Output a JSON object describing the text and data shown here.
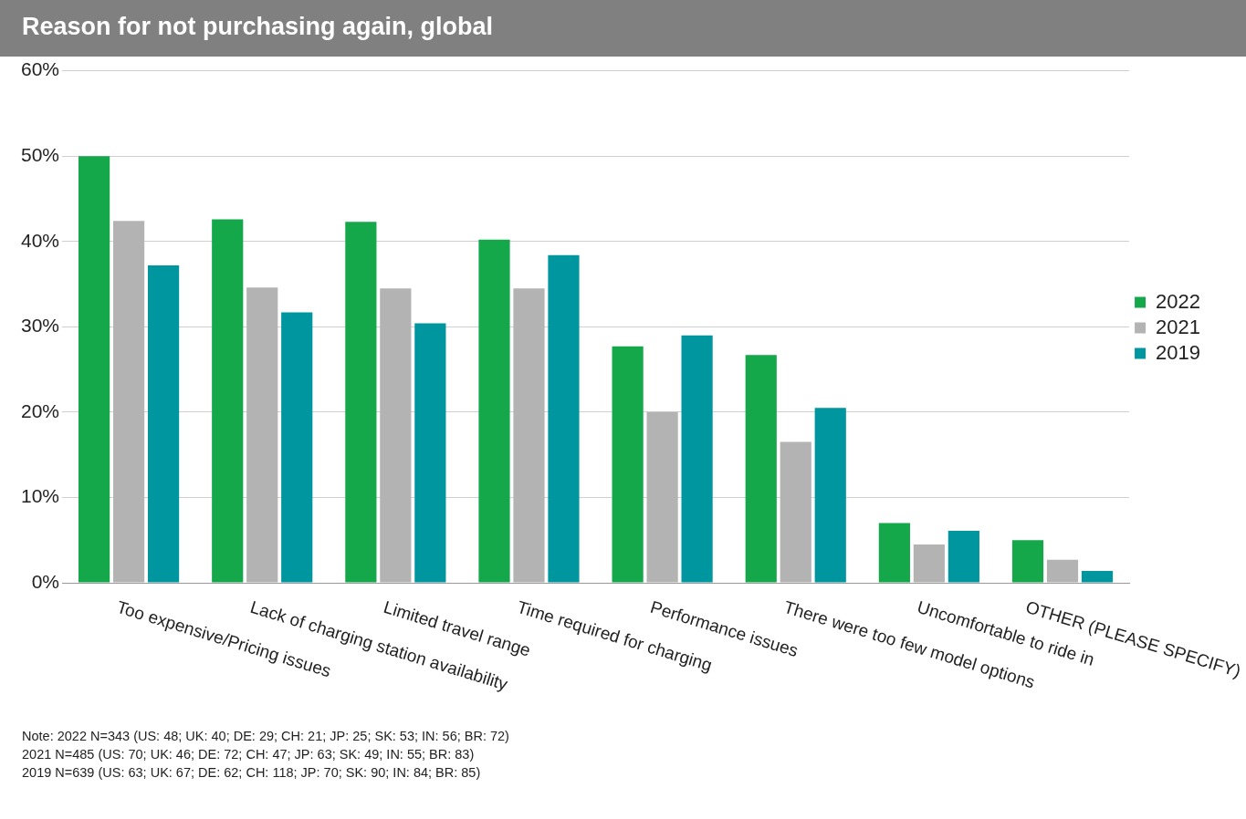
{
  "chart_data": {
    "type": "bar",
    "title": "Reason for not purchasing again, global",
    "categories": [
      "Too expensive/Pricing issues",
      "Lack of charging station availability",
      "Limited travel range",
      "Time required for charging",
      "Performance issues",
      "There were too few model options",
      "Uncomfortable to ride in",
      "OTHER (PLEASE SPECIFY)"
    ],
    "series": [
      {
        "name": "2022",
        "color": "#14a84b",
        "values": [
          50,
          42.6,
          42.3,
          40.2,
          27.7,
          26.7,
          7.0,
          5.0
        ]
      },
      {
        "name": "2021",
        "color": "#b3b3b3",
        "values": [
          42.4,
          34.6,
          34.5,
          34.5,
          20,
          16.5,
          4.5,
          2.7
        ]
      },
      {
        "name": "2019",
        "color": "#00969f",
        "values": [
          37.2,
          31.7,
          30.4,
          38.4,
          29.0,
          20.5,
          6.1,
          1.4
        ]
      }
    ],
    "ylim": [
      0,
      60
    ],
    "yticks": [
      {
        "value": 0,
        "label": "0%"
      },
      {
        "value": 10,
        "label": "10%"
      },
      {
        "value": 20,
        "label": "20%"
      },
      {
        "value": 30,
        "label": "30%"
      },
      {
        "value": 40,
        "label": "40%"
      },
      {
        "value": 50,
        "label": "50%"
      },
      {
        "value": 60,
        "label": "60%"
      }
    ],
    "grid": "y",
    "legend": "right",
    "annotations": [
      "Note: 2022 N=343 (US: 48; UK: 40; DE: 29; CH: 21; JP: 25; SK: 53; IN: 56; BR: 72)",
      "2021 N=485 (US: 70; UK: 46; DE: 72; CH: 47; JP: 63; SK: 49; IN: 55; BR: 83)",
      "2019 N=639 (US: 63; UK: 67; DE: 62; CH: 118; JP: 70; SK: 90; IN: 84; BR: 85)"
    ]
  }
}
